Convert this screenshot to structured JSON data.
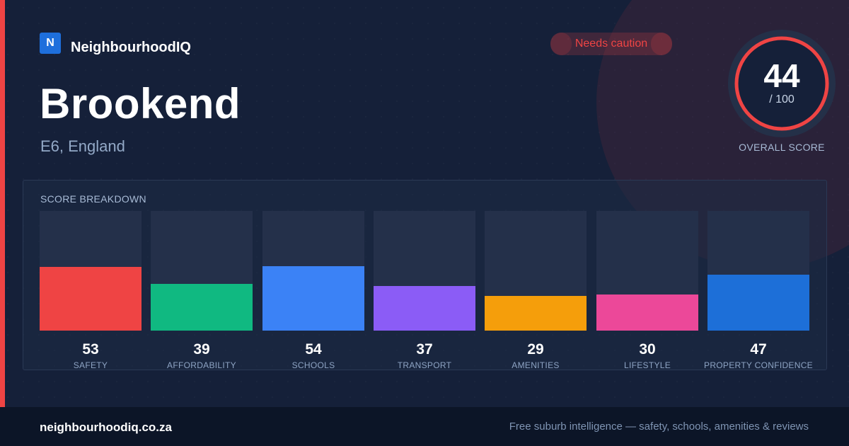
{
  "brand": {
    "logo_letter": "N",
    "name": "NeighbourhoodIQ",
    "logo_color": "#1e6fdc"
  },
  "suburb": {
    "name": "Brookend",
    "location": "E6, England"
  },
  "status": {
    "label": "Needs caution",
    "color": "#ef4444"
  },
  "overall": {
    "score": "44",
    "max": "/ 100",
    "label": "OVERALL SCORE",
    "ring_color": "#ef4444"
  },
  "breakdown": {
    "title": "SCORE BREAKDOWN",
    "items": [
      {
        "label": "SAFETY",
        "value": 53,
        "value_text": "53",
        "color": "#ef4444"
      },
      {
        "label": "AFFORDABILITY",
        "value": 39,
        "value_text": "39",
        "color": "#10b981"
      },
      {
        "label": "SCHOOLS",
        "value": 54,
        "value_text": "54",
        "color": "#3b82f6"
      },
      {
        "label": "TRANSPORT",
        "value": 37,
        "value_text": "37",
        "color": "#8b5cf6"
      },
      {
        "label": "AMENITIES",
        "value": 29,
        "value_text": "29",
        "color": "#f59e0b"
      },
      {
        "label": "LIFESTYLE",
        "value": 30,
        "value_text": "30",
        "color": "#ec4899"
      },
      {
        "label": "PROPERTY CONFIDENCE",
        "value": 47,
        "value_text": "47",
        "color": "#1d6fd8"
      }
    ]
  },
  "footer": {
    "url": "neighbourhoodiq.co.za",
    "tagline": "Free suburb intelligence — safety, schools, amenities & reviews"
  }
}
